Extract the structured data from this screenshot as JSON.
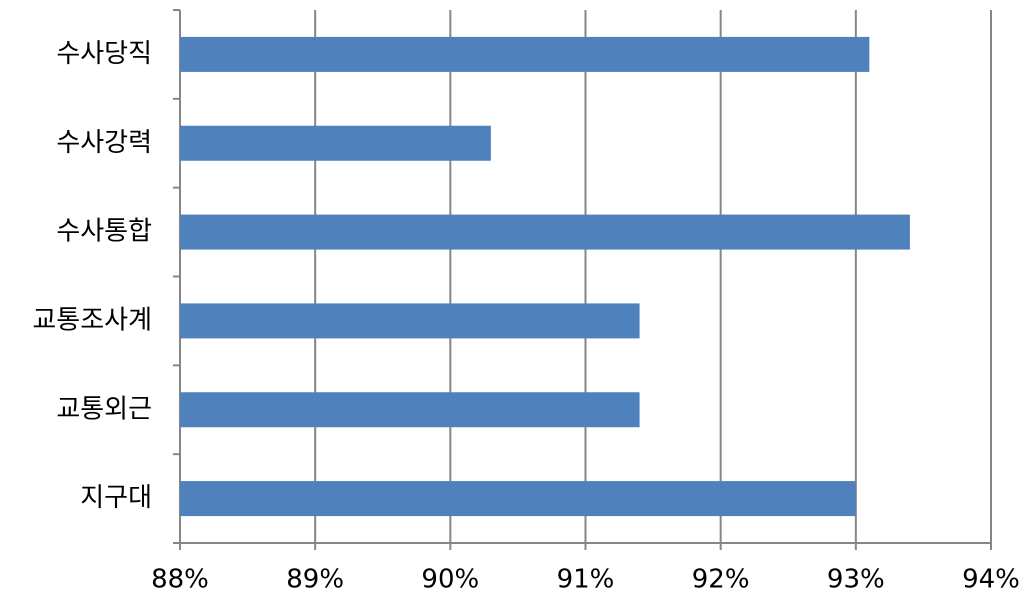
{
  "chart_data": {
    "type": "bar",
    "orientation": "horizontal",
    "categories": [
      "수사당직",
      "수사강력",
      "수사통합",
      "교통조사계",
      "교통외근",
      "지구대"
    ],
    "values": [
      93.1,
      90.3,
      93.4,
      91.4,
      91.4,
      93.0
    ],
    "color": "#4f81bd",
    "xlim": [
      88,
      94
    ],
    "xticks": [
      {
        "value": 88,
        "label": "88%"
      },
      {
        "value": 89,
        "label": "89%"
      },
      {
        "value": 90,
        "label": "90%"
      },
      {
        "value": 91,
        "label": "91%"
      },
      {
        "value": 92,
        "label": "92%"
      },
      {
        "value": 93,
        "label": "93%"
      },
      {
        "value": 94,
        "label": "94%"
      }
    ],
    "grid": true
  }
}
